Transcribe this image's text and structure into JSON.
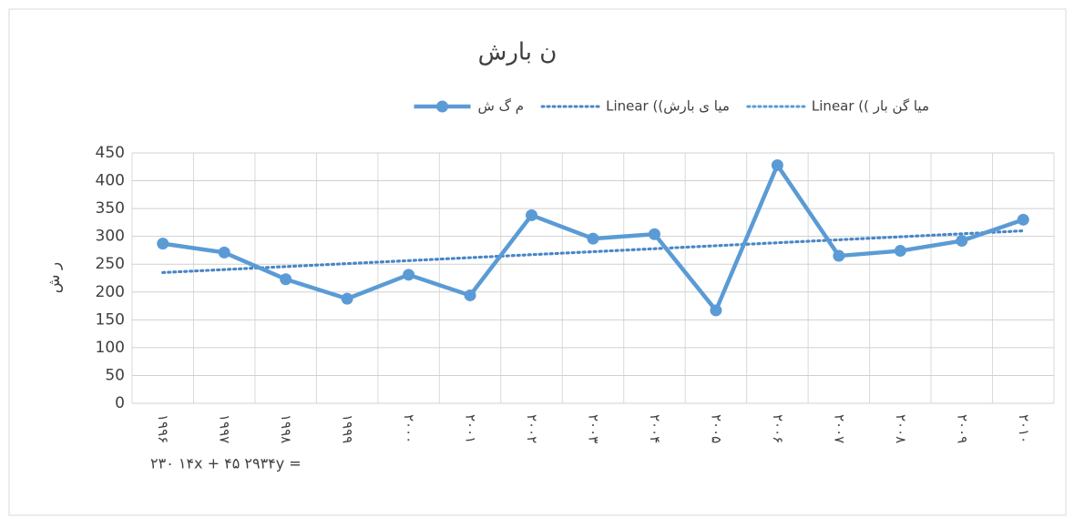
{
  "chart_data": {
    "type": "line",
    "title": "ن بارش",
    "y_label": "ر ش",
    "categories": [
      "۱۹۹۶",
      "۱۹۹۷",
      "۱۹۹۸",
      "۱۹۹۹",
      "۲۰۰۰",
      "۲۰۰۱",
      "۲۰۰۲",
      "۲۰۰۳",
      "۲۰۰۴",
      "۲۰۰۵",
      "۲۰۰۶",
      "۲۰۰۷",
      "۲۰۰۸",
      "۲۰۰۹",
      "۲۰۱۰"
    ],
    "series": [
      {
        "name": "م گ   ش",
        "color": "#5b9bd5",
        "values": [
          287,
          271,
          223,
          188,
          231,
          194,
          338,
          296,
          304,
          167,
          428,
          265,
          274,
          292,
          330
        ]
      }
    ],
    "trendlines": [
      {
        "name": "میا گن بار  )) Linear",
        "color": "#5b9bd5",
        "values": [
          235,
          310
        ]
      },
      {
        "name": "میا  ی  بارش)) Linear",
        "color": "#4a86c5",
        "values": [
          235,
          310
        ]
      }
    ],
    "annotation": "۲۳۰ ۱۴x + ۴۵ ۲۹۳۴y =",
    "ylim": [
      0,
      450
    ],
    "yticks": [
      0,
      50,
      100,
      150,
      200,
      250,
      300,
      350,
      400,
      450
    ],
    "grid": true
  }
}
